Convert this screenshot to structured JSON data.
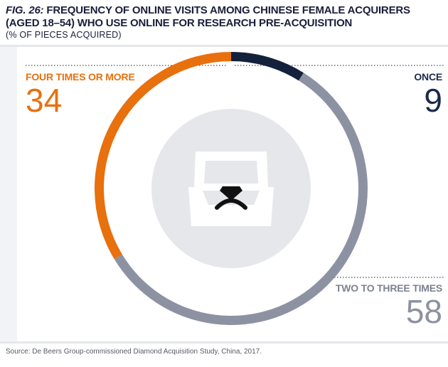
{
  "title": {
    "fig_label": "FIG. 26:",
    "text": "FREQUENCY OF ONLINE VISITS AMONG CHINESE FEMALE ACQUIRERS (AGED 18–54) WHO USE ONLINE FOR RESEARCH PRE-ACQUISITION"
  },
  "subtitle": "(% OF PIECES ACQUIRED)",
  "source": "Source: De Beers Group-commissioned Diamond Acquisition Study, China, 2017.",
  "icon": "ring-box-icon",
  "colors": {
    "once": "#14213d",
    "two_to_three": "#8d92a3",
    "four_or_more": "#e8700d",
    "center_circle": "#e6e7eb"
  },
  "chart_data": {
    "type": "pie",
    "variant": "donut",
    "categories": [
      "ONCE",
      "TWO TO THREE TIMES",
      "FOUR TIMES OR MORE"
    ],
    "values": [
      9,
      58,
      34
    ],
    "labels": {
      "once": "ONCE",
      "once_value": "9",
      "two": "TWO TO THREE TIMES",
      "two_value": "58",
      "four": "FOUR TIMES OR MORE",
      "four_value": "34"
    }
  }
}
